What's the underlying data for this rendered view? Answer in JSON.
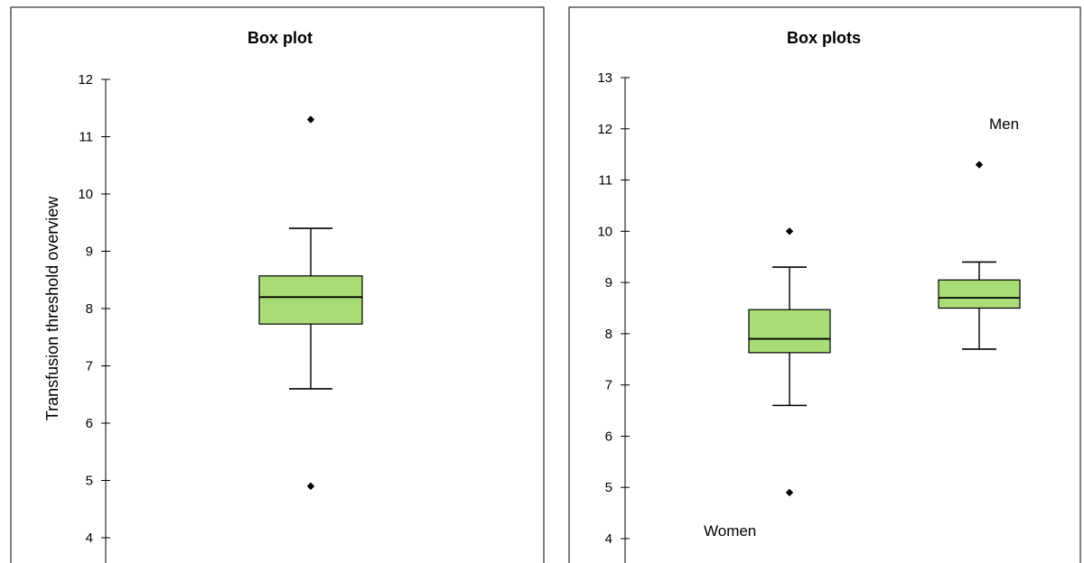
{
  "chart_data": [
    {
      "type": "box",
      "title": "Box plot",
      "ylabel": "Transfusion threshold overview",
      "xlabel": "",
      "ylim": [
        4,
        12
      ],
      "yticks": [
        4,
        5,
        6,
        7,
        8,
        9,
        10,
        11,
        12
      ],
      "grid": false,
      "boxes": [
        {
          "name": "",
          "whisker_low": 6.6,
          "q1": 7.73,
          "median": 8.2,
          "q3": 8.57,
          "whisker_high": 9.4,
          "outliers": [
            4.9,
            11.3
          ]
        }
      ],
      "colors": {
        "box_fill": "#a9dc76",
        "box_stroke": "#000000"
      }
    },
    {
      "type": "box",
      "title": "Box plots",
      "ylabel": "",
      "xlabel": "",
      "ylim": [
        4,
        13
      ],
      "yticks": [
        4,
        5,
        6,
        7,
        8,
        9,
        10,
        11,
        12,
        13
      ],
      "grid": false,
      "boxes": [
        {
          "name": "Women",
          "whisker_low": 6.6,
          "q1": 7.63,
          "median": 7.9,
          "q3": 8.47,
          "whisker_high": 9.3,
          "outliers": [
            4.9,
            10.0
          ]
        },
        {
          "name": "Men",
          "whisker_low": 7.7,
          "q1": 8.5,
          "median": 8.7,
          "q3": 9.05,
          "whisker_high": 9.4,
          "outliers": [
            11.3
          ]
        }
      ],
      "colors": {
        "box_fill": "#a9dc76",
        "box_stroke": "#000000"
      }
    }
  ]
}
